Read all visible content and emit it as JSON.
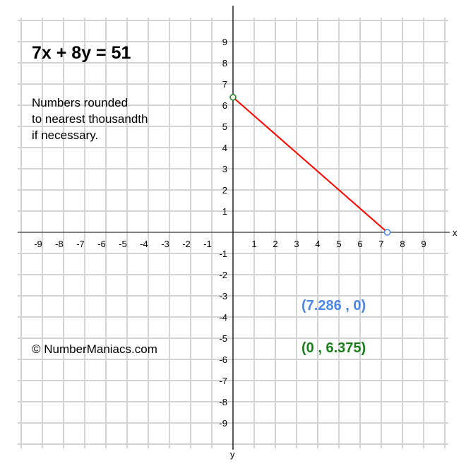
{
  "chart_data": {
    "type": "line",
    "title": "7x + 8y = 51",
    "xlabel": "x",
    "ylabel": "y",
    "xlim": [
      -10,
      10
    ],
    "ylim": [
      -10,
      10
    ],
    "grid": true,
    "x_ticks": [
      -9,
      -8,
      -7,
      -6,
      -5,
      -4,
      -3,
      -2,
      -1,
      1,
      2,
      3,
      4,
      5,
      6,
      7,
      8,
      9
    ],
    "y_ticks": [
      -9,
      -8,
      -7,
      -6,
      -5,
      -4,
      -3,
      -2,
      -1,
      1,
      2,
      3,
      4,
      5,
      6,
      7,
      8,
      9
    ],
    "series": [
      {
        "points": [
          [
            0,
            6.375
          ],
          [
            7.286,
            0
          ]
        ],
        "color": "#ff0000"
      }
    ],
    "markers": [
      {
        "x": 7.286,
        "y": 0,
        "color": "#4a86e8",
        "label": "(7.286 , 0)"
      },
      {
        "x": 0,
        "y": 6.375,
        "color": "#1a7f1a",
        "label": "(0 , 6.375)"
      }
    ],
    "note": "Numbers rounded\nto nearest thousandth\nif necessary.",
    "credit": "© NumberManiacs.com"
  }
}
